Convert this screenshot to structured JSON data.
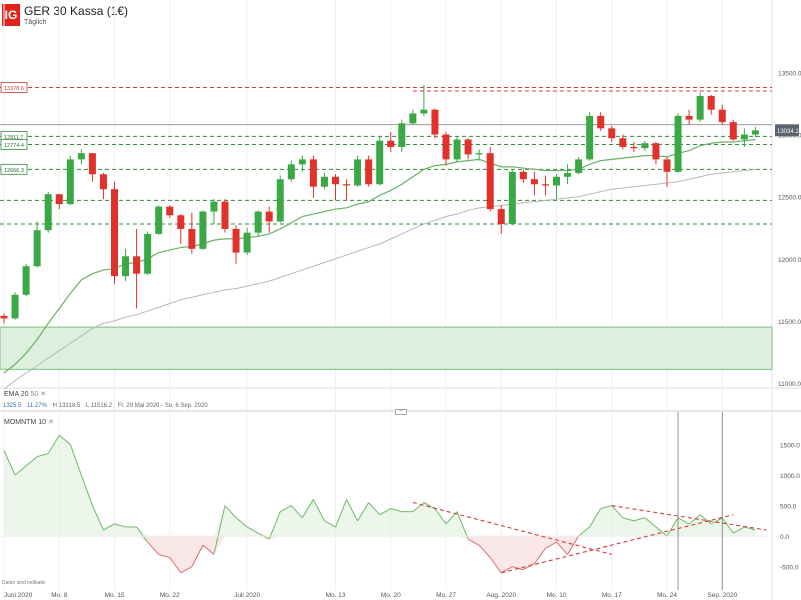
{
  "header": {
    "logo": "IG",
    "title": "GER 30 Kassa (1€)",
    "subtitle": "Täglich"
  },
  "price_badges": {
    "current": "13034.1",
    "levels": [
      "13378.6",
      "12811.7",
      "12774.4",
      "12666.3"
    ]
  },
  "stats": {
    "close": "1325.5",
    "change": "11.27%",
    "high": "H 13318.5",
    "low": "L 11516.2",
    "range": "Fr. 29 Mai 2020 - So. 6 Sep. 2020"
  },
  "ema_legend": {
    "label": "EMA",
    "p1": "20",
    "p2": "50"
  },
  "momentum_legend": {
    "label": "MOMNTM",
    "period": "10"
  },
  "footer_note": "Daten sind indikativ",
  "colors": {
    "up": "#3aa845",
    "down": "#e0312b",
    "ema20": "#69b363",
    "ema50": "#b8b8b8",
    "zone": "#cfe9cf",
    "dashed_green": "#2f8f3a",
    "dashed_red": "#d23b3b"
  },
  "chart_data": [
    {
      "type": "candlestick",
      "title": "GER 30 Kassa (1€)",
      "ylim": [
        11000,
        13600
      ],
      "y_ticks": [
        11000,
        11500,
        12000,
        12500,
        13000,
        13500
      ],
      "x_labels": [
        "Juni 2020",
        "Mo. 8",
        "Mo. 15",
        "Mo. 22",
        "Juli 2020",
        "Mo. 13",
        "Mo. 20",
        "Mo. 27",
        "Aug. 2020",
        "Mo. 10",
        "Mo. 17",
        "Mo. 24",
        "Sep. 2020"
      ],
      "x_label_index": [
        0,
        5,
        10,
        15,
        22,
        30,
        35,
        40,
        45,
        50,
        55,
        60,
        65
      ],
      "candles": [
        [
          11540,
          11560,
          11480,
          11520
        ],
        [
          11520,
          11730,
          11510,
          11710
        ],
        [
          11710,
          11960,
          11700,
          11940
        ],
        [
          11940,
          12300,
          11930,
          12230
        ],
        [
          12230,
          12540,
          12210,
          12520
        ],
        [
          12520,
          12520,
          12400,
          12440
        ],
        [
          12440,
          12830,
          12430,
          12800
        ],
        [
          12800,
          12880,
          12760,
          12850
        ],
        [
          12850,
          12850,
          12620,
          12680
        ],
        [
          12680,
          12690,
          12480,
          12560
        ],
        [
          12560,
          12620,
          11800,
          11860
        ],
        [
          11860,
          12080,
          11820,
          12020
        ],
        [
          12020,
          12240,
          11600,
          11880
        ],
        [
          11880,
          12220,
          11870,
          12200
        ],
        [
          12200,
          12430,
          12190,
          12420
        ],
        [
          12420,
          12430,
          12330,
          12350
        ],
        [
          12350,
          12360,
          12120,
          12240
        ],
        [
          12240,
          12370,
          12040,
          12080
        ],
        [
          12080,
          12390,
          12070,
          12380
        ],
        [
          12380,
          12480,
          12280,
          12460
        ],
        [
          12460,
          12480,
          12210,
          12240
        ],
        [
          12240,
          12270,
          11960,
          12050
        ],
        [
          12050,
          12250,
          12030,
          12210
        ],
        [
          12210,
          12390,
          12180,
          12380
        ],
        [
          12380,
          12420,
          12210,
          12300
        ],
        [
          12300,
          12670,
          12290,
          12640
        ],
        [
          12640,
          12790,
          12620,
          12760
        ],
        [
          12760,
          12830,
          12700,
          12800
        ],
        [
          12800,
          12830,
          12490,
          12580
        ],
        [
          12580,
          12690,
          12560,
          12660
        ],
        [
          12660,
          12680,
          12470,
          12600
        ],
        [
          12600,
          12640,
          12470,
          12590
        ],
        [
          12590,
          12830,
          12580,
          12800
        ],
        [
          12800,
          12830,
          12580,
          12600
        ],
        [
          12600,
          12980,
          12590,
          12950
        ],
        [
          12950,
          13020,
          12860,
          12900
        ],
        [
          12900,
          13120,
          12860,
          13090
        ],
        [
          13090,
          13200,
          13080,
          13170
        ],
        [
          13170,
          13400,
          13150,
          13200
        ],
        [
          13200,
          13210,
          12970,
          13000
        ],
        [
          13000,
          13020,
          12750,
          12800
        ],
        [
          12800,
          12990,
          12780,
          12960
        ],
        [
          12960,
          12970,
          12800,
          12840
        ],
        [
          12840,
          12880,
          12790,
          12850
        ],
        [
          12850,
          12900,
          12380,
          12400
        ],
        [
          12400,
          12430,
          12200,
          12280
        ],
        [
          12280,
          12720,
          12270,
          12700
        ],
        [
          12700,
          12720,
          12610,
          12640
        ],
        [
          12640,
          12700,
          12510,
          12600
        ],
        [
          12600,
          12670,
          12510,
          12590
        ],
        [
          12590,
          12680,
          12480,
          12660
        ],
        [
          12660,
          12760,
          12600,
          12690
        ],
        [
          12690,
          12820,
          12680,
          12800
        ],
        [
          12800,
          13180,
          12790,
          13150
        ],
        [
          13150,
          13180,
          13030,
          13050
        ],
        [
          13050,
          13070,
          12940,
          12970
        ],
        [
          12970,
          13000,
          12880,
          12900
        ],
        [
          12900,
          12940,
          12860,
          12890
        ],
        [
          12890,
          12950,
          12870,
          12930
        ],
        [
          12930,
          12940,
          12760,
          12800
        ],
        [
          12800,
          12820,
          12580,
          12700
        ],
        [
          12700,
          13170,
          12690,
          13150
        ],
        [
          13150,
          13200,
          13080,
          13120
        ],
        [
          13120,
          13340,
          13100,
          13310
        ],
        [
          13310,
          13320,
          13160,
          13200
        ],
        [
          13200,
          13240,
          13080,
          13100
        ],
        [
          13100,
          13120,
          12950,
          12960
        ],
        [
          12960,
          13050,
          12900,
          13000
        ],
        [
          13000,
          13060,
          12980,
          13034
        ]
      ],
      "ema20": [
        11080,
        11150,
        11240,
        11350,
        11480,
        11600,
        11720,
        11830,
        11880,
        11910,
        11920,
        11960,
        11970,
        12000,
        12050,
        12070,
        12090,
        12100,
        12120,
        12150,
        12160,
        12160,
        12170,
        12180,
        12200,
        12240,
        12290,
        12340,
        12360,
        12380,
        12400,
        12410,
        12440,
        12460,
        12510,
        12550,
        12600,
        12660,
        12720,
        12750,
        12760,
        12780,
        12790,
        12800,
        12770,
        12740,
        12740,
        12730,
        12720,
        12710,
        12710,
        12710,
        12720,
        12760,
        12790,
        12800,
        12810,
        12820,
        12830,
        12830,
        12820,
        12850,
        12870,
        12910,
        12930,
        12940,
        12940,
        12950,
        12960
      ],
      "ema50": [
        10950,
        11020,
        11080,
        11140,
        11200,
        11260,
        11320,
        11380,
        11440,
        11480,
        11500,
        11530,
        11550,
        11580,
        11610,
        11640,
        11670,
        11690,
        11710,
        11730,
        11750,
        11760,
        11780,
        11800,
        11820,
        11850,
        11880,
        11910,
        11940,
        11970,
        12000,
        12030,
        12060,
        12090,
        12120,
        12160,
        12200,
        12240,
        12280,
        12310,
        12340,
        12360,
        12390,
        12410,
        12420,
        12430,
        12440,
        12450,
        12460,
        12470,
        12480,
        12490,
        12500,
        12520,
        12540,
        12560,
        12570,
        12580,
        12590,
        12600,
        12610,
        12620,
        12640,
        12660,
        12680,
        12690,
        12700,
        12710,
        12720
      ],
      "horizontal_levels": [
        {
          "value": 13378.6,
          "style": "dashed",
          "color": "red"
        },
        {
          "value": 13350,
          "style": "dashed",
          "color": "red"
        },
        {
          "value": 13080,
          "style": "solid",
          "color": "gray"
        },
        {
          "value": 12985,
          "style": "dashed",
          "color": "green"
        },
        {
          "value": 12920,
          "style": "dashed",
          "color": "green"
        },
        {
          "value": 12720,
          "style": "dashed",
          "color": "green"
        },
        {
          "value": 12470,
          "style": "dashed",
          "color": "green"
        },
        {
          "value": 12280,
          "style": "dashed",
          "color": "green"
        }
      ],
      "support_zone": [
        11110,
        11450
      ]
    },
    {
      "type": "line",
      "title": "MOMNTM 10",
      "ylim": [
        -800,
        1900
      ],
      "y_ticks": [
        -500,
        0,
        500,
        1000,
        1500
      ],
      "values": [
        1400,
        1000,
        1150,
        1300,
        1350,
        1650,
        1500,
        1000,
        500,
        100,
        200,
        150,
        150,
        -100,
        -300,
        -350,
        -600,
        -500,
        -150,
        -300,
        500,
        300,
        150,
        50,
        -50,
        400,
        500,
        300,
        600,
        250,
        150,
        600,
        250,
        550,
        350,
        450,
        400,
        400,
        550,
        450,
        200,
        400,
        -50,
        -150,
        -350,
        -600,
        -500,
        -550,
        -450,
        -200,
        -100,
        -300,
        0,
        150,
        450,
        500,
        300,
        250,
        300,
        150,
        0,
        300,
        200,
        350,
        200,
        300,
        50,
        150,
        100
      ]
    }
  ]
}
